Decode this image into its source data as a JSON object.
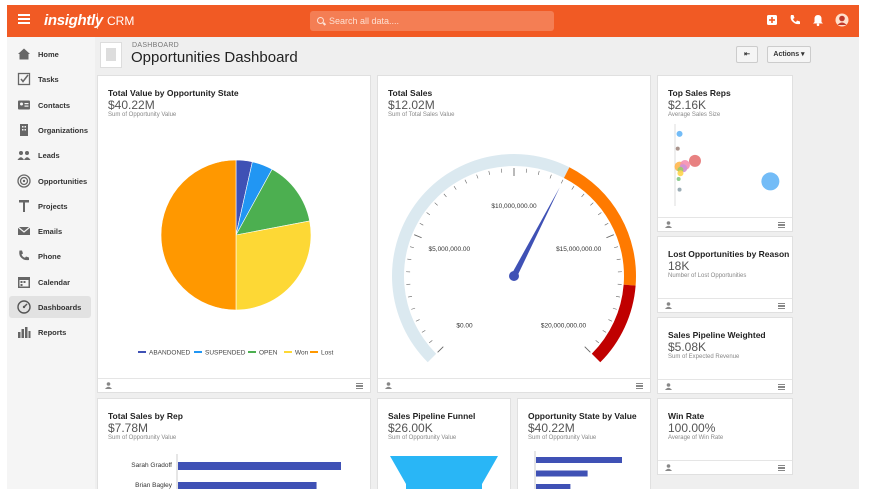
{
  "topbar": {
    "logo": "insightly",
    "app_name": "CRM",
    "search_placeholder": "Search all data...."
  },
  "sidebar": {
    "items": [
      {
        "label": "Home",
        "icon": "home-icon"
      },
      {
        "label": "Tasks",
        "icon": "tasks-icon"
      },
      {
        "label": "Contacts",
        "icon": "contacts-icon"
      },
      {
        "label": "Organizations",
        "icon": "organizations-icon"
      },
      {
        "label": "Leads",
        "icon": "leads-icon"
      },
      {
        "label": "Opportunities",
        "icon": "opportunities-icon"
      },
      {
        "label": "Projects",
        "icon": "projects-icon"
      },
      {
        "label": "Emails",
        "icon": "emails-icon"
      },
      {
        "label": "Phone",
        "icon": "phone-icon"
      },
      {
        "label": "Calendar",
        "icon": "calendar-icon"
      },
      {
        "label": "Dashboards",
        "icon": "dashboards-icon",
        "active": true
      },
      {
        "label": "Reports",
        "icon": "reports-icon"
      }
    ]
  },
  "header": {
    "breadcrumb": "DASHBOARD",
    "title": "Opportunities Dashboard",
    "back_label": "⇤",
    "actions_label": "Actions ▾"
  },
  "cards": {
    "value_by_state": {
      "title": "Total Value by Opportunity State",
      "value": "$40.22M",
      "sub": "Sum of Opportunity Value"
    },
    "total_sales": {
      "title": "Total Sales",
      "value": "$12.02M",
      "sub": "Sum of Total Sales Value"
    },
    "top_reps": {
      "title": "Top Sales Reps",
      "value": "$2.16K",
      "sub": "Average Sales Size"
    },
    "lost": {
      "title": "Lost Opportunities by Reason",
      "value": "18K",
      "sub": "Number of Lost Opportunities"
    },
    "pipeline_weighted": {
      "title": "Sales Pipeline Weighted",
      "value": "$5.08K",
      "sub": "Sum of Expected Revenue"
    },
    "sales_by_rep": {
      "title": "Total Sales by Rep",
      "value": "$7.78M",
      "sub": "Sum of Opportunity Value"
    },
    "funnel": {
      "title": "Sales Pipeline Funnel",
      "value": "$26.00K",
      "sub": "Sum of Opportunity Value"
    },
    "state_by_value": {
      "title": "Opportunity State by Value",
      "value": "$40.22M",
      "sub": "Sum of Opportunity Value"
    },
    "win_rate": {
      "title": "Win Rate",
      "value": "100.00%",
      "sub": "Average of Win Rate"
    }
  },
  "colors": {
    "brand": "#f15a24",
    "abandoned": "#3f51b5",
    "suspended": "#2196f3",
    "open": "#4caf50",
    "won": "#fdd835",
    "lost": "#ff9800"
  },
  "chart_data": [
    {
      "type": "pie",
      "categories": [
        "ABANDONED",
        "SUSPENDED",
        "OPEN",
        "Won",
        "Lost"
      ],
      "values": [
        3.5,
        4.5,
        14,
        28,
        50
      ],
      "legend": "bottom"
    },
    {
      "type": "gauge",
      "tick_labels": [
        "$0.00",
        "$5,000,000.00",
        "$10,000,000.00",
        "$15,000,000.00",
        "$20,000,000.00"
      ],
      "range": [
        0,
        20000000
      ],
      "value": 12020000,
      "bands": [
        {
          "from": 0,
          "to": 12000000,
          "color": "#dbe9f0"
        },
        {
          "from": 12000000,
          "to": 17000000,
          "color": "#ff7a00"
        },
        {
          "from": 17000000,
          "to": 20000000,
          "color": "#c00000"
        }
      ]
    },
    {
      "type": "scatter",
      "points": [
        {
          "x": 0.5,
          "y": 0.88,
          "r": 3,
          "color": "#64b5f6"
        },
        {
          "x": 0.3,
          "y": 0.7,
          "r": 2,
          "color": "#a1887f"
        },
        {
          "x": 2.2,
          "y": 0.55,
          "r": 6,
          "color": "#e57373"
        },
        {
          "x": 0.5,
          "y": 0.48,
          "r": 5,
          "color": "#ffb74d"
        },
        {
          "x": 1.1,
          "y": 0.5,
          "r": 5,
          "color": "#f48fb1"
        },
        {
          "x": 0.9,
          "y": 0.46,
          "r": 4,
          "color": "#ce93d8"
        },
        {
          "x": 0.6,
          "y": 0.44,
          "r": 3,
          "color": "#9ccc65"
        },
        {
          "x": 0.6,
          "y": 0.4,
          "r": 3,
          "color": "#ffd54f"
        },
        {
          "x": 0.4,
          "y": 0.33,
          "r": 2,
          "color": "#81c784"
        },
        {
          "x": 0.5,
          "y": 0.2,
          "r": 2,
          "color": "#90a4ae"
        },
        {
          "x": 10.5,
          "y": 0.3,
          "r": 9,
          "color": "#64b5f6"
        }
      ]
    },
    {
      "type": "bar",
      "orientation": "horizontal",
      "categories": [
        "Sarah Gradoff",
        "Brian Bagley"
      ],
      "values": [
        1.0,
        0.85
      ]
    },
    {
      "type": "bar",
      "orientation": "horizontal",
      "categories": [
        "",
        "",
        ""
      ],
      "values": [
        1.0,
        0.6,
        0.4
      ],
      "color": "#3f51b5"
    }
  ]
}
